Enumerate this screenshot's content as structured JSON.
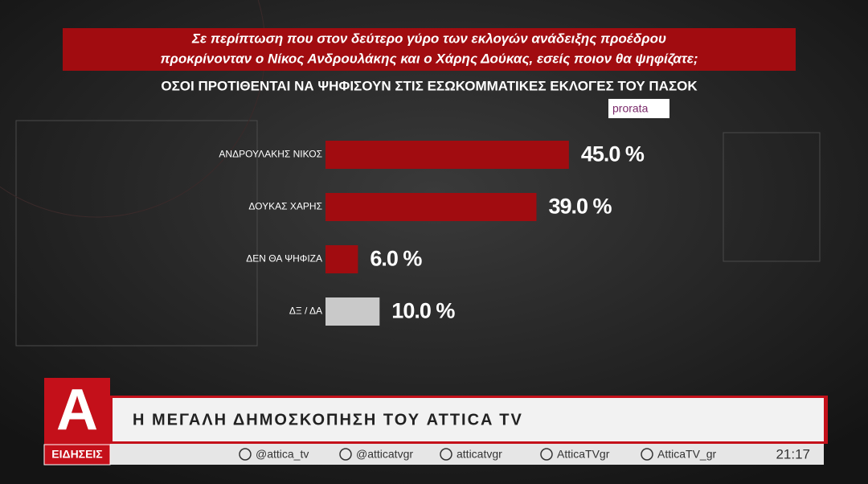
{
  "chart_data": {
    "type": "hbar",
    "title": [
      "Σε περίπτωση που στον δεύτερο γύρο των εκλογών ανάδειξης προέδρου",
      "προκρίνονταν ο Νίκος Ανδρουλάκης και ο Χάρης Δούκας, εσείς ποιον θα ψηφίζατε;"
    ],
    "subtitle": "ΟΣΟΙ ΠΡΟΤΙΘΕΝΤΑΙ ΝΑ ΨΗΦΙΣΟΥΝ ΣΤΙΣ ΕΣΩΚΟΜΜΑΤΙΚΕΣ ΕΚΛΟΓΕΣ ΤΟΥ ΠΑΣΟΚ",
    "source": "prorata",
    "categories": [
      "ΑΝΔΡΟΥΛΑΚΗΣ ΝΙΚΟΣ",
      "ΔΟΥΚΑΣ ΧΑΡΗΣ",
      "ΔΕΝ ΘΑ ΨΗΦΙΖΑ",
      "ΔΞ / ΔΑ"
    ],
    "values": [
      45.0,
      39.0,
      6.0,
      10.0
    ],
    "value_labels": [
      "45.0 %",
      "39.0 %",
      "6.0 %",
      "10.0 %"
    ],
    "colors": [
      "#a10c10",
      "#a10c10",
      "#a10c10",
      "#c9c9c9"
    ]
  },
  "broadcast": {
    "logo": "Α",
    "section": "ΕΙΔΗΣΕΙΣ",
    "headline": "Η ΜΕΓΑΛΗ ΔΗΜΟΣΚΟΠΗΣΗ ΤΟΥ ATTICA TV",
    "socials": [
      "@attica_tv",
      "@atticatvgr",
      "atticatvgr",
      "AtticaTVgr",
      "AtticaTV_gr"
    ],
    "time": "21:17"
  }
}
